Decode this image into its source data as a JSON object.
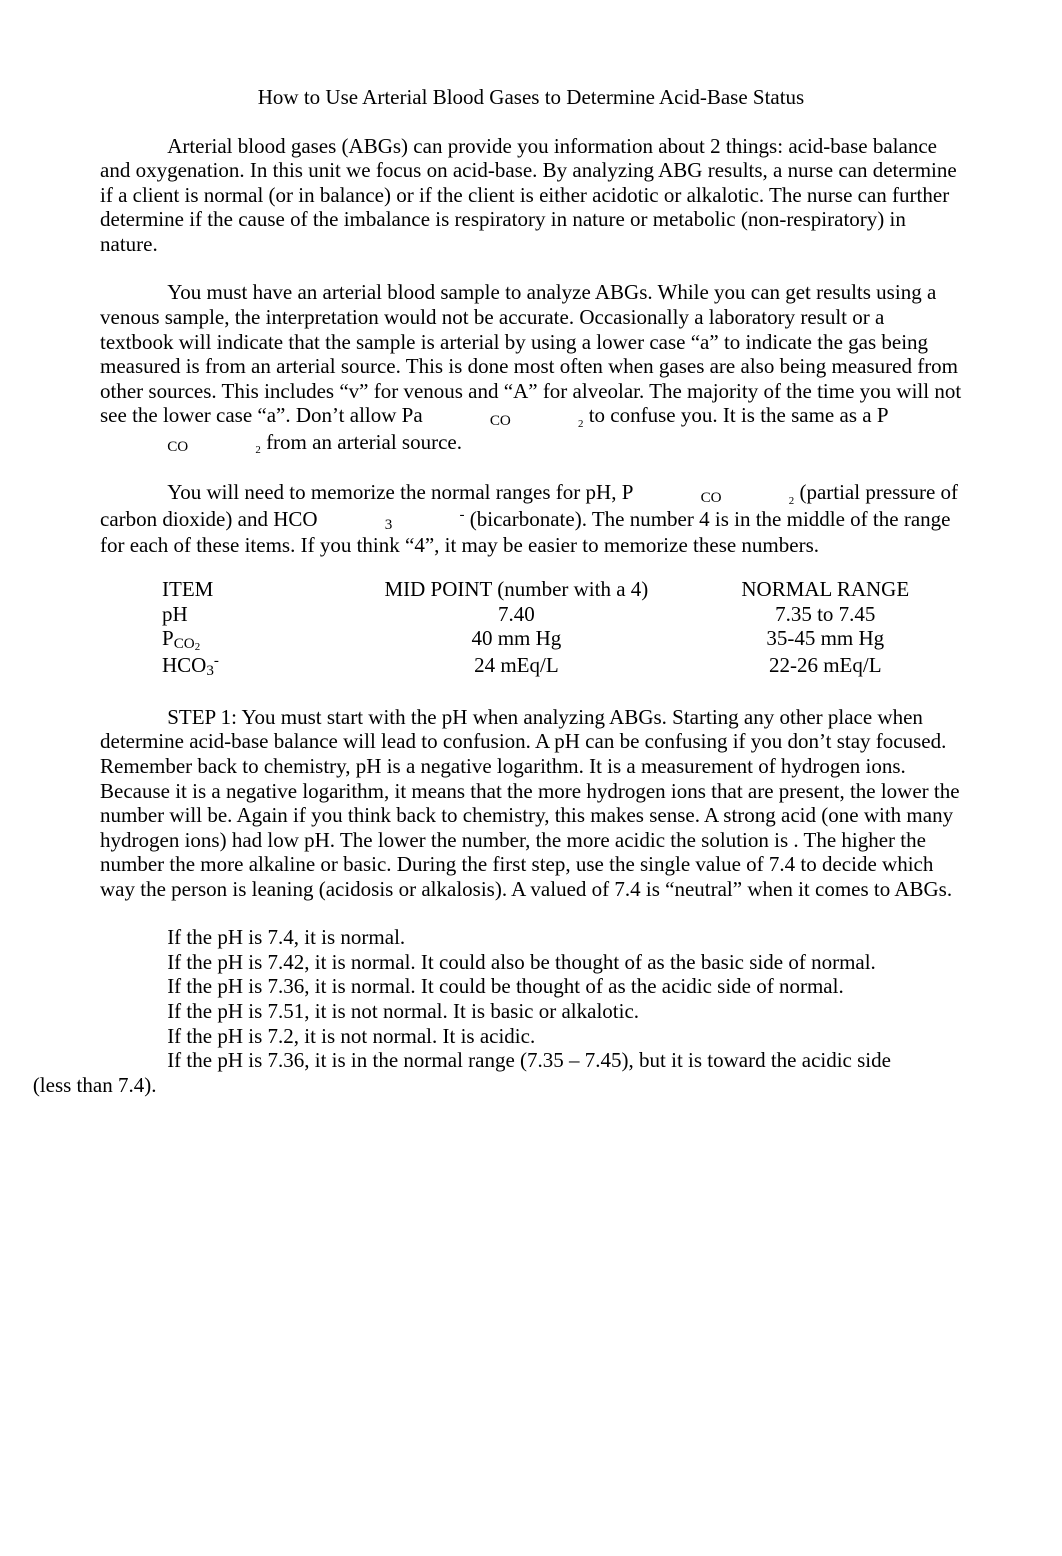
{
  "title": "How to Use Arterial Blood Gases to Determine Acid-Base Status",
  "p1": "Arterial blood gases (ABGs) can provide you information about 2 things:  acid-base balance and oxygenation.  In this unit we focus on acid-base.  By analyzing ABG results, a nurse can determine if a client is normal (or in balance) or if the client is either acidotic or alkalotic.  The nurse can further determine if the cause of the imbalance is respiratory in nature or metabolic (non-respiratory) in nature.",
  "p2_a": "You must have an arterial blood sample to analyze ABGs.  While you can get results using a venous sample, the interpretation would not be accurate.  Occasionally a laboratory result or a textbook will indicate that the sample is arterial by using a lower case “a” to indicate the gas being measured is from an arterial source.  This is done most often when gases are also being measured from other sources.  This includes “v” for venous and “A” for alveolar.   The majority of the time you will not see the lower case “a”.  Don’t allow Pa",
  "p2_b": " to confuse you.  It is the same as a P",
  "p2_c": " from an arterial source.",
  "p3_a": "You will need to memorize the normal ranges for pH, P",
  "p3_b": " (partial pressure of carbon dioxide) and HCO",
  "p3_c": " (bicarbonate).  The number 4 is in the middle of the range for each of these items.  If you think “4”, it may be easier to memorize these numbers.",
  "table": {
    "h_item": "ITEM",
    "h_mid": "MID POINT (number with a 4)",
    "h_range": "NORMAL RANGE",
    "r1_item": "pH",
    "r1_mid": "7.40",
    "r1_range": "7.35 to 7.45",
    "r2_item_a": "P",
    "r2_mid": "40 mm Hg",
    "r2_range": "35-45 mm Hg",
    "r3_item_a": "HCO",
    "r3_mid": "24 mEq/L",
    "r3_range": "22-26 mEq/L"
  },
  "p4": "STEP 1:   You must start with the pH when analyzing ABGs.   Starting any other place when determine acid-base balance will lead to confusion.  A pH can be confusing if you don’t stay focused.  Remember back to chemistry, pH is a negative logarithm.  It is a measurement of hydrogen ions.  Because it is a negative logarithm, it means that the more hydrogen ions that are present, the lower the number will be.  Again if you think back to chemistry, this makes sense.  A strong acid (one with many hydrogen ions) had low pH.  The lower the number, the more acidic the solution is .  The higher the number the more alkaline or basic.  During the first step, use the single value of 7.4 to decide which way the person is leaning (acidosis or alkalosis).  A valued of 7.4 is “neutral” when it comes to ABGs.",
  "phlines": {
    "l1": "If the pH is 7.4, it is normal.",
    "l2": "If the pH is 7.42, it is normal.  It could also be thought of as the basic side of normal.",
    "l3": "If the pH is 7.36, it is normal.  It could be thought of as the acidic side of normal.",
    "l4": "If the pH is 7.51, it is not normal.  It is basic or alkalotic.",
    "l5": "If the pH is 7.2, it is not normal.  It is acidic."
  },
  "p5_a": "If the pH is 7.36, it is in the normal range (7.35 – 7.45), but it is toward the acidic side ",
  "p5_b": "(less than 7.4).",
  "co2": "CO",
  "two": "2",
  "three": "3",
  "minus": "-"
}
